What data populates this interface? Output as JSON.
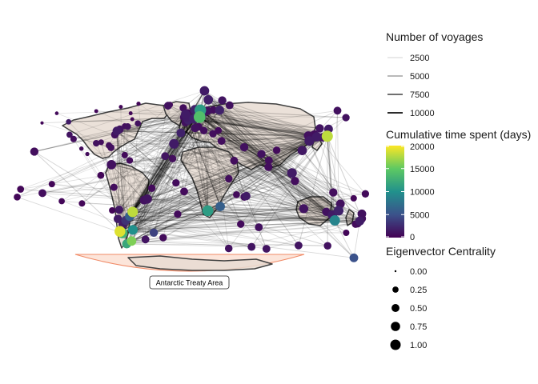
{
  "map": {
    "annotation": "Antarctic Treaty Area",
    "colors": {
      "land": "#e8dcd2",
      "coast": "#404040",
      "route": "#000000",
      "ata_fill": "#fbe0d4",
      "ata_stroke": "#f08a66"
    },
    "ports": [
      {
        "lon": -150,
        "lat": 48,
        "v": 0.02,
        "c": 0.02
      },
      {
        "lon": -135,
        "lat": 57,
        "v": 0.03,
        "c": 0.03
      },
      {
        "lon": -123,
        "lat": 49,
        "v": 0.08,
        "c": 0.12
      },
      {
        "lon": -122,
        "lat": 37,
        "v": 0.06,
        "c": 0.18
      },
      {
        "lon": -118,
        "lat": 33,
        "v": 0.04,
        "c": 0.2
      },
      {
        "lon": -110,
        "lat": 24,
        "v": 0.03,
        "c": 0.06
      },
      {
        "lon": -104,
        "lat": 19,
        "v": 0.03,
        "c": 0.05
      },
      {
        "lon": -95,
        "lat": 29,
        "v": 0.05,
        "c": 0.22
      },
      {
        "lon": -90,
        "lat": 30,
        "v": 0.04,
        "c": 0.14
      },
      {
        "lon": -82,
        "lat": 27,
        "v": 0.04,
        "c": 0.2
      },
      {
        "lon": -80,
        "lat": 25,
        "v": 0.05,
        "c": 0.26
      },
      {
        "lon": -76,
        "lat": 37,
        "v": 0.05,
        "c": 0.32
      },
      {
        "lon": -74,
        "lat": 40.5,
        "v": 0.08,
        "c": 0.45
      },
      {
        "lon": -71,
        "lat": 42,
        "v": 0.06,
        "c": 0.35
      },
      {
        "lon": -66,
        "lat": 45,
        "v": 0.04,
        "c": 0.15
      },
      {
        "lon": -63,
        "lat": 44.6,
        "v": 0.05,
        "c": 0.22
      },
      {
        "lon": -52.7,
        "lat": 47.5,
        "v": 0.05,
        "c": 0.18
      },
      {
        "lon": -79.5,
        "lat": 9,
        "v": 0.05,
        "c": 0.55
      },
      {
        "lon": -66,
        "lat": 18,
        "v": 0.03,
        "c": 0.2
      },
      {
        "lon": -61,
        "lat": 13,
        "v": 0.03,
        "c": 0.22
      },
      {
        "lon": -77,
        "lat": -12,
        "v": 0.04,
        "c": 0.28
      },
      {
        "lon": -71.6,
        "lat": -33,
        "v": 0.07,
        "c": 0.4
      },
      {
        "lon": -73,
        "lat": -41.5,
        "v": 0.08,
        "c": 0.42
      },
      {
        "lon": -38.5,
        "lat": -12.9,
        "v": 0.03,
        "c": 0.3
      },
      {
        "lon": -43,
        "lat": -23,
        "v": 0.06,
        "c": 0.52
      },
      {
        "lon": -46.3,
        "lat": -24,
        "v": 0.05,
        "c": 0.45
      },
      {
        "lon": -58,
        "lat": -35,
        "v": 0.9,
        "c": 0.72
      },
      {
        "lon": -61,
        "lat": -39,
        "v": 0.3,
        "c": 0.55
      },
      {
        "lon": -65,
        "lat": -43,
        "v": 0.15,
        "c": 0.5
      },
      {
        "lon": -68,
        "lat": -47,
        "v": 0.08,
        "c": 0.45
      },
      {
        "lon": -70.9,
        "lat": -53.2,
        "v": 0.95,
        "c": 0.78
      },
      {
        "lon": -68.3,
        "lat": -54.8,
        "v": 0.65,
        "c": 0.7
      },
      {
        "lon": -57.8,
        "lat": -51.7,
        "v": 0.5,
        "c": 0.6
      },
      {
        "lon": -59,
        "lat": -62.2,
        "v": 0.8,
        "c": 0.55
      },
      {
        "lon": -64,
        "lat": -64.8,
        "v": 0.6,
        "c": 0.5
      },
      {
        "lon": -36.5,
        "lat": -54.3,
        "v": 0.2,
        "c": 0.4
      },
      {
        "lon": -58.4,
        "lat": 51.5,
        "v": 0.02,
        "c": 0.04
      },
      {
        "lon": -60,
        "lat": 57,
        "v": 0.02,
        "c": 0.04
      },
      {
        "lon": -52,
        "lat": 66,
        "v": 0.02,
        "c": 0.05
      },
      {
        "lon": -70,
        "lat": 63,
        "v": 0.02,
        "c": 0.04
      },
      {
        "lon": -95,
        "lat": 59,
        "v": 0.02,
        "c": 0.04
      },
      {
        "lon": -20,
        "lat": 65,
        "v": 0.03,
        "c": 0.15
      },
      {
        "lon": -22,
        "lat": 64,
        "v": 0.05,
        "c": 0.35
      },
      {
        "lon": -9,
        "lat": 38.7,
        "v": 0.1,
        "c": 0.45
      },
      {
        "lon": -16,
        "lat": 28.5,
        "v": 0.08,
        "c": 0.6
      },
      {
        "lon": -17.4,
        "lat": 14.7,
        "v": 0.04,
        "c": 0.3
      },
      {
        "lon": -25,
        "lat": 17,
        "v": 0.06,
        "c": 0.35
      },
      {
        "lon": -5.7,
        "lat": -15.9,
        "v": 0.03,
        "c": 0.35
      },
      {
        "lon": -14,
        "lat": -7.9,
        "v": 0.03,
        "c": 0.3
      },
      {
        "lon": 18.4,
        "lat": -33.9,
        "v": 0.55,
        "c": 0.8
      },
      {
        "lon": 31,
        "lat": -29.9,
        "v": 0.3,
        "c": 0.55
      },
      {
        "lon": -4.5,
        "lat": 48.4,
        "v": 0.05,
        "c": 0.35
      },
      {
        "lon": -1.2,
        "lat": 50.7,
        "v": 0.1,
        "c": 0.52
      },
      {
        "lon": 0.5,
        "lat": 51.5,
        "v": 0.09,
        "c": 0.5
      },
      {
        "lon": -3,
        "lat": 53.4,
        "v": 0.08,
        "c": 0.55
      },
      {
        "lon": -6.2,
        "lat": 53.3,
        "v": 0.05,
        "c": 0.3
      },
      {
        "lon": -4.2,
        "lat": 55.9,
        "v": 0.08,
        "c": 0.55
      },
      {
        "lon": -2,
        "lat": 57.1,
        "v": 0.04,
        "c": 0.4
      },
      {
        "lon": 4.4,
        "lat": 51.9,
        "v": 0.1,
        "c": 0.6
      },
      {
        "lon": 10,
        "lat": 53.5,
        "v": 0.7,
        "c": 0.95
      },
      {
        "lon": 5.3,
        "lat": 60.4,
        "v": 0.1,
        "c": 0.55
      },
      {
        "lon": 10.7,
        "lat": 59.9,
        "v": 0.55,
        "c": 0.92
      },
      {
        "lon": 12.6,
        "lat": 55.7,
        "v": 0.07,
        "c": 0.5
      },
      {
        "lon": 18,
        "lat": 59.3,
        "v": 0.05,
        "c": 0.45
      },
      {
        "lon": 30.3,
        "lat": 59.9,
        "v": 0.1,
        "c": 0.5
      },
      {
        "lon": 15,
        "lat": 78,
        "v": 0.08,
        "c": 0.55
      },
      {
        "lon": 18.9,
        "lat": 69.6,
        "v": 0.09,
        "c": 0.55
      },
      {
        "lon": 33,
        "lat": 69,
        "v": 0.06,
        "c": 0.4
      },
      {
        "lon": 40.5,
        "lat": 64.5,
        "v": 0.05,
        "c": 0.35
      },
      {
        "lon": 5.4,
        "lat": 43.3,
        "v": 0.05,
        "c": 0.4
      },
      {
        "lon": 8.9,
        "lat": 44.4,
        "v": 0.04,
        "c": 0.35
      },
      {
        "lon": 14.3,
        "lat": 40.8,
        "v": 0.04,
        "c": 0.3
      },
      {
        "lon": 23.6,
        "lat": 37.9,
        "v": 0.04,
        "c": 0.3
      },
      {
        "lon": 29,
        "lat": 41,
        "v": 0.03,
        "c": 0.25
      },
      {
        "lon": 32.3,
        "lat": 31.2,
        "v": 0.04,
        "c": 0.35
      },
      {
        "lon": 39.7,
        "lat": -4,
        "v": 0.04,
        "c": 0.3
      },
      {
        "lon": 57.5,
        "lat": -20.2,
        "v": 0.08,
        "c": 0.4
      },
      {
        "lon": 55.5,
        "lat": -21,
        "v": 0.05,
        "c": 0.35
      },
      {
        "lon": 47.5,
        "lat": -18.9,
        "v": 0.03,
        "c": 0.25
      },
      {
        "lon": 70.2,
        "lat": -49.3,
        "v": 0.05,
        "c": 0.35
      },
      {
        "lon": 51.8,
        "lat": -46.4,
        "v": 0.03,
        "c": 0.3
      },
      {
        "lon": 45,
        "lat": 12.8,
        "v": 0.04,
        "c": 0.35
      },
      {
        "lon": 55.3,
        "lat": 25.3,
        "v": 0.05,
        "c": 0.4
      },
      {
        "lon": 72.8,
        "lat": 19,
        "v": 0.05,
        "c": 0.4
      },
      {
        "lon": 80.3,
        "lat": 13,
        "v": 0.04,
        "c": 0.35
      },
      {
        "lon": 79.9,
        "lat": 6.9,
        "v": 0.04,
        "c": 0.38
      },
      {
        "lon": 88.3,
        "lat": 22.5,
        "v": 0.03,
        "c": 0.3
      },
      {
        "lon": 103.8,
        "lat": 1.3,
        "v": 0.08,
        "c": 0.6
      },
      {
        "lon": 106.8,
        "lat": -6.1,
        "v": 0.04,
        "c": 0.4
      },
      {
        "lon": 114.2,
        "lat": 22.3,
        "v": 0.07,
        "c": 0.55
      },
      {
        "lon": 121.5,
        "lat": 31.2,
        "v": 0.08,
        "c": 0.6
      },
      {
        "lon": 120.3,
        "lat": 36.1,
        "v": 0.05,
        "c": 0.45
      },
      {
        "lon": 126.6,
        "lat": 37.4,
        "v": 0.04,
        "c": 0.4
      },
      {
        "lon": 129,
        "lat": 35.1,
        "v": 0.08,
        "c": 0.55
      },
      {
        "lon": 135.2,
        "lat": 34.7,
        "v": 0.05,
        "c": 0.45
      },
      {
        "lon": 139.7,
        "lat": 35.6,
        "v": 0.9,
        "c": 0.85
      },
      {
        "lon": 140.1,
        "lat": 36.1,
        "v": 0.2,
        "c": 0.5
      },
      {
        "lon": 141,
        "lat": 42.4,
        "v": 0.08,
        "c": 0.45
      },
      {
        "lon": 132,
        "lat": 43,
        "v": 0.06,
        "c": 0.4
      },
      {
        "lon": 150,
        "lat": 59.5,
        "v": 0.05,
        "c": 0.35
      },
      {
        "lon": 158.6,
        "lat": 53,
        "v": 0.05,
        "c": 0.3
      },
      {
        "lon": 145.8,
        "lat": -16.9,
        "v": 0.04,
        "c": 0.4
      },
      {
        "lon": 153,
        "lat": -27.5,
        "v": 0.05,
        "c": 0.45
      },
      {
        "lon": 151.2,
        "lat": -33.8,
        "v": 0.1,
        "c": 0.6
      },
      {
        "lon": 144.9,
        "lat": -37.8,
        "v": 0.08,
        "c": 0.55
      },
      {
        "lon": 138.6,
        "lat": -34.9,
        "v": 0.05,
        "c": 0.4
      },
      {
        "lon": 115.8,
        "lat": -32,
        "v": 0.06,
        "c": 0.5
      },
      {
        "lon": 147.3,
        "lat": -42.9,
        "v": 0.45,
        "c": 0.7
      },
      {
        "lon": 174.8,
        "lat": -36.8,
        "v": 0.05,
        "c": 0.45
      },
      {
        "lon": 174.8,
        "lat": -41.3,
        "v": 0.04,
        "c": 0.4
      },
      {
        "lon": 172.7,
        "lat": -43.5,
        "v": 0.08,
        "c": 0.5
      },
      {
        "lon": 170.5,
        "lat": -45.9,
        "v": 0.04,
        "c": 0.35
      },
      {
        "lon": 168.4,
        "lat": -46.4,
        "v": 0.03,
        "c": 0.3
      },
      {
        "lon": 158.9,
        "lat": -54.5,
        "v": 0.02,
        "c": 0.2
      },
      {
        "lon": 178.4,
        "lat": -18.1,
        "v": 0.03,
        "c": 0.3
      },
      {
        "lon": 166.5,
        "lat": -22.3,
        "v": 0.02,
        "c": 0.2
      },
      {
        "lon": -149.6,
        "lat": -17.5,
        "v": 0.04,
        "c": 0.35
      },
      {
        "lon": -157.8,
        "lat": 21.3,
        "v": 0.04,
        "c": 0.4
      },
      {
        "lon": -171.8,
        "lat": -13.8,
        "v": 0.02,
        "c": 0.25
      },
      {
        "lon": -175.2,
        "lat": -21.1,
        "v": 0.02,
        "c": 0.25
      },
      {
        "lon": -140,
        "lat": -9,
        "v": 0.02,
        "c": 0.2
      },
      {
        "lon": -130,
        "lat": -25,
        "v": 0.02,
        "c": 0.18
      },
      {
        "lon": -109.4,
        "lat": -27.1,
        "v": 0.02,
        "c": 0.2
      },
      {
        "lon": -78.8,
        "lat": -33.6,
        "v": 0.02,
        "c": 0.2
      },
      {
        "lon": -90.3,
        "lat": -0.9,
        "v": 0.02,
        "c": 0.25
      },
      {
        "lon": 166.7,
        "lat": -77.8,
        "v": 0.25,
        "c": 0.45
      },
      {
        "lon": 110.5,
        "lat": -66.3,
        "v": 0.06,
        "c": 0.35
      },
      {
        "lon": 77.9,
        "lat": -69.4,
        "v": 0.06,
        "c": 0.35
      },
      {
        "lon": 62.8,
        "lat": -67.6,
        "v": 0.06,
        "c": 0.35
      },
      {
        "lon": 39.6,
        "lat": -69,
        "v": 0.05,
        "c": 0.32
      },
      {
        "lon": 140,
        "lat": -66.6,
        "v": 0.05,
        "c": 0.32
      },
      {
        "lon": -45,
        "lat": -60.7,
        "v": 0.06,
        "c": 0.35
      },
      {
        "lon": -27,
        "lat": -59,
        "v": 0.03,
        "c": 0.3
      },
      {
        "lon": -12.3,
        "lat": -37.1,
        "v": 0.03,
        "c": 0.3
      },
      {
        "lon": -6.6,
        "lat": 62,
        "v": 0.04,
        "c": 0.3
      },
      {
        "lon": 24,
        "lat": 60.2,
        "v": 0.04,
        "c": 0.3
      }
    ]
  },
  "legends": {
    "voyages": {
      "title": "Number of voyages",
      "items": [
        {
          "label": "2500",
          "value": 2500
        },
        {
          "label": "5000",
          "value": 5000
        },
        {
          "label": "7500",
          "value": 7500
        },
        {
          "label": "10000",
          "value": 10000
        }
      ]
    },
    "time": {
      "title": "Cumulative time spent (days)",
      "ticks": [
        {
          "label": "20000",
          "value": 20000
        },
        {
          "label": "15000",
          "value": 15000
        },
        {
          "label": "10000",
          "value": 10000
        },
        {
          "label": "5000",
          "value": 5000
        },
        {
          "label": "0",
          "value": 0
        }
      ],
      "range": [
        0,
        20000
      ],
      "colors": [
        "#440154",
        "#3b528b",
        "#21918c",
        "#5ec962",
        "#fde725"
      ]
    },
    "centrality": {
      "title": "Eigenvector Centrality",
      "items": [
        {
          "label": "0.00",
          "value": 0
        },
        {
          "label": "0.25",
          "value": 0.25
        },
        {
          "label": "0.50",
          "value": 0.5
        },
        {
          "label": "0.75",
          "value": 0.75
        },
        {
          "label": "1.00",
          "value": 1
        }
      ]
    }
  }
}
